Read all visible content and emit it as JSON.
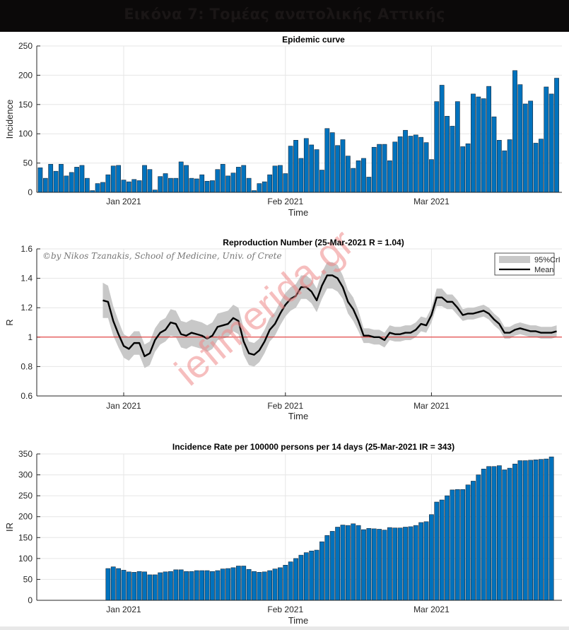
{
  "header": {
    "title": "Εικόνα 7: Τομέας ανατολικής Αττικής"
  },
  "copyright": "©by Nikos Tzanakis, School of Medicine, Univ. of Crete",
  "watermark": "iefimerida.gr",
  "colors": {
    "bar": "#0072bd",
    "bar_edge": "#1a2a3a",
    "ci_band": "#c8c8c8",
    "mean_line": "#000000",
    "ref_line": "#e02020",
    "grid": "#e6e6e6"
  },
  "chart_data": [
    {
      "type": "bar",
      "title": "Epidemic curve",
      "xlabel": "Time",
      "ylabel": "Incidence",
      "ylim": [
        0,
        250
      ],
      "yticks": [
        "0",
        "50",
        "100",
        "150",
        "200",
        "250"
      ],
      "xticks": [
        "Jan 2021",
        "Feb 2021",
        "Mar 2021"
      ],
      "x_start": "2020-12-16",
      "x_end": "2021-03-25",
      "grid": true,
      "values": [
        42,
        24,
        48,
        36,
        48,
        28,
        34,
        43,
        46,
        24,
        3,
        15,
        17,
        30,
        45,
        46,
        21,
        18,
        22,
        20,
        46,
        39,
        4,
        27,
        32,
        24,
        24,
        52,
        46,
        24,
        23,
        30,
        19,
        20,
        39,
        48,
        28,
        33,
        43,
        46,
        24,
        3,
        15,
        18,
        30,
        45,
        46,
        32,
        79,
        89,
        58,
        92,
        81,
        73,
        38,
        109,
        102,
        80,
        90,
        62,
        41,
        54,
        58,
        26,
        77,
        82,
        82,
        54,
        86,
        95,
        106,
        96,
        98,
        94,
        85,
        56,
        155,
        183,
        130,
        113,
        155,
        78,
        83,
        168,
        163,
        160,
        181,
        129,
        89,
        71,
        90,
        208,
        184,
        151,
        156,
        84,
        91,
        180,
        168,
        195
      ]
    },
    {
      "type": "line",
      "title": "Reproduction Number (25-Mar-2021 R = 1.04)",
      "xlabel": "Time",
      "ylabel": "R",
      "ylim": [
        0.6,
        1.6
      ],
      "yticks": [
        "0.6",
        "0.8",
        "1",
        "1.2",
        "1.4",
        "1.6"
      ],
      "xticks": [
        "Jan 2021",
        "Feb 2021",
        "Mar 2021"
      ],
      "x_start": "2020-12-28",
      "x_end": "2021-03-25",
      "reference_line": 1.0,
      "grid": true,
      "legend": {
        "position": "top-right",
        "entries": [
          "95%CrI",
          "Mean"
        ]
      },
      "series": [
        {
          "name": "Mean",
          "values": [
            1.25,
            1.24,
            1.11,
            1.02,
            0.94,
            0.92,
            0.96,
            0.96,
            0.87,
            0.89,
            0.98,
            1.03,
            1.05,
            1.1,
            1.09,
            1.02,
            1.01,
            1.03,
            1.02,
            1.01,
            0.99,
            1.01,
            1.07,
            1.08,
            1.09,
            1.13,
            1.11,
            0.97,
            0.89,
            0.88,
            0.91,
            0.97,
            1.05,
            1.09,
            1.16,
            1.22,
            1.26,
            1.28,
            1.34,
            1.34,
            1.31,
            1.25,
            1.35,
            1.42,
            1.42,
            1.4,
            1.34,
            1.24,
            1.19,
            1.11,
            1.01,
            1.01,
            1.0,
            1.0,
            0.98,
            1.03,
            1.02,
            1.02,
            1.03,
            1.03,
            1.05,
            1.09,
            1.08,
            1.15,
            1.27,
            1.27,
            1.24,
            1.24,
            1.2,
            1.15,
            1.16,
            1.16,
            1.17,
            1.18,
            1.16,
            1.12,
            1.09,
            1.03,
            1.03,
            1.05,
            1.06,
            1.05,
            1.04,
            1.04,
            1.03,
            1.03,
            1.03,
            1.04
          ]
        },
        {
          "name": "95%CrI half-width",
          "values": [
            0.12,
            0.11,
            0.1,
            0.09,
            0.08,
            0.08,
            0.08,
            0.08,
            0.08,
            0.08,
            0.08,
            0.08,
            0.08,
            0.09,
            0.09,
            0.09,
            0.09,
            0.09,
            0.09,
            0.09,
            0.09,
            0.09,
            0.09,
            0.09,
            0.09,
            0.09,
            0.09,
            0.09,
            0.08,
            0.08,
            0.08,
            0.08,
            0.08,
            0.08,
            0.08,
            0.08,
            0.08,
            0.08,
            0.08,
            0.08,
            0.08,
            0.08,
            0.09,
            0.09,
            0.09,
            0.09,
            0.08,
            0.08,
            0.08,
            0.07,
            0.05,
            0.05,
            0.05,
            0.05,
            0.05,
            0.05,
            0.05,
            0.05,
            0.05,
            0.05,
            0.05,
            0.05,
            0.05,
            0.05,
            0.06,
            0.06,
            0.05,
            0.05,
            0.05,
            0.04,
            0.04,
            0.04,
            0.04,
            0.04,
            0.04,
            0.04,
            0.04,
            0.04,
            0.04,
            0.04,
            0.04,
            0.04,
            0.04,
            0.04,
            0.04,
            0.04,
            0.04,
            0.04
          ]
        }
      ]
    },
    {
      "type": "bar",
      "title": "Incidence Rate per 100000 persons per 14 days (25-Mar-2021 IR = 343)",
      "xlabel": "Time",
      "ylabel": "IR",
      "ylim": [
        0,
        350
      ],
      "yticks": [
        "0",
        "50",
        "100",
        "150",
        "200",
        "250",
        "300",
        "350"
      ],
      "xticks": [
        "Jan 2021",
        "Feb 2021",
        "Mar 2021"
      ],
      "x_start": "2020-12-29",
      "x_end": "2021-03-25",
      "grid": true,
      "values": [
        76,
        80,
        76,
        72,
        68,
        67,
        69,
        68,
        61,
        61,
        66,
        68,
        69,
        73,
        73,
        69,
        69,
        71,
        71,
        71,
        69,
        71,
        75,
        76,
        78,
        82,
        82,
        74,
        69,
        67,
        68,
        71,
        75,
        78,
        84,
        92,
        100,
        108,
        114,
        118,
        120,
        140,
        155,
        165,
        175,
        180,
        179,
        183,
        179,
        169,
        172,
        171,
        170,
        168,
        174,
        173,
        173,
        175,
        176,
        179,
        186,
        188,
        205,
        235,
        240,
        250,
        264,
        265,
        265,
        276,
        285,
        300,
        314,
        320,
        320,
        322,
        312,
        316,
        326,
        334,
        334,
        335,
        336,
        337,
        338,
        343
      ]
    }
  ]
}
